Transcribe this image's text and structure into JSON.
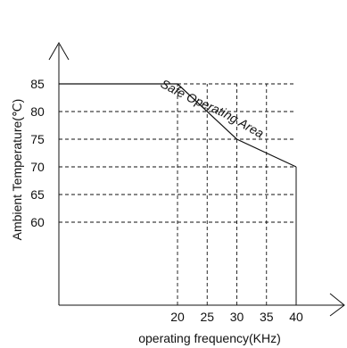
{
  "chart_data": {
    "type": "line",
    "title": "",
    "xlabel": "operating frequency(KHz)",
    "ylabel": "Ambient Temperature(℃)",
    "x_ticks": [
      20,
      25,
      30,
      35,
      40
    ],
    "y_ticks": [
      60,
      65,
      70,
      75,
      80,
      85
    ],
    "xlim": [
      0,
      40
    ],
    "ylim": [
      45,
      85
    ],
    "grid": "dashed",
    "series": [
      {
        "points": [
          [
            0,
            85
          ],
          [
            20,
            85
          ],
          [
            30,
            75
          ],
          [
            40,
            70
          ]
        ]
      }
    ],
    "region_label": "Safe Operating Area"
  }
}
